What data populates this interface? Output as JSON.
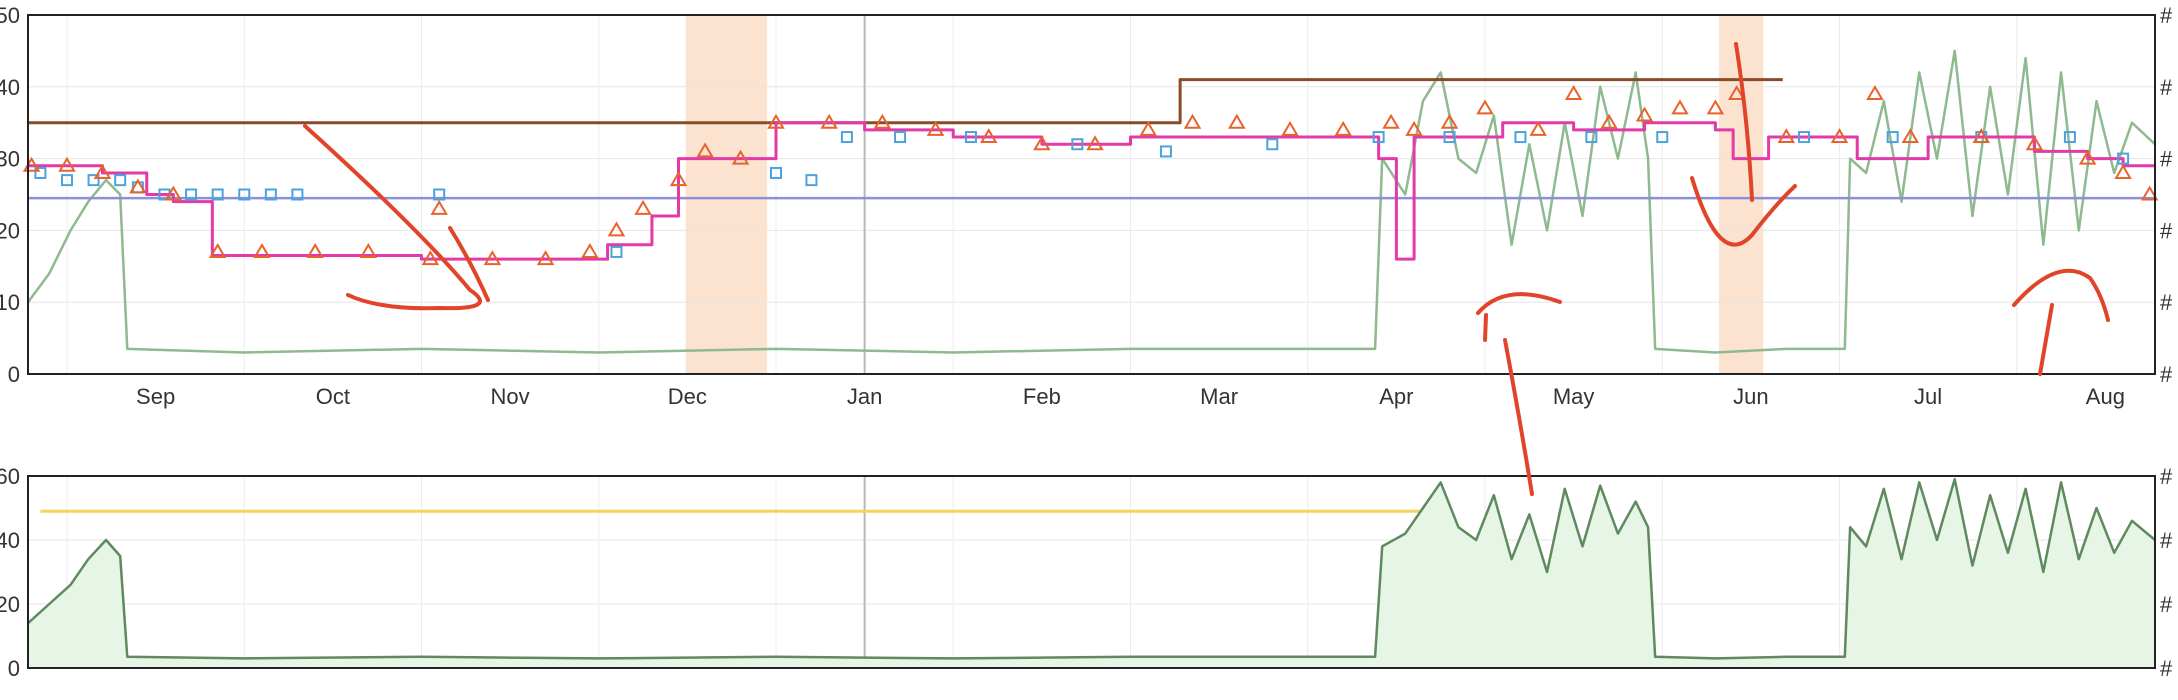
{
  "chart_data": [
    {
      "type": "line",
      "panel": "top",
      "grid": true,
      "legend": "none",
      "ylim": [
        0,
        50
      ],
      "y_ticks": [
        "0",
        "10",
        "20",
        "30",
        "40",
        "50"
      ],
      "right_ticks": [
        "#",
        "#",
        "#",
        "#",
        "#",
        "#"
      ],
      "x_ticks": [
        {
          "label": "Sep",
          "t": 1.0
        },
        {
          "label": "Oct",
          "t": 2.0
        },
        {
          "label": "Nov",
          "t": 3.0
        },
        {
          "label": "Dec",
          "t": 4.0
        },
        {
          "label": "Jan",
          "t": 5.0
        },
        {
          "label": "Feb",
          "t": 6.0
        },
        {
          "label": "Mar",
          "t": 7.0
        },
        {
          "label": "Apr",
          "t": 8.0
        },
        {
          "label": "May",
          "t": 9.0
        },
        {
          "label": "Jun",
          "t": 10.0
        },
        {
          "label": "Jul",
          "t": 11.0
        },
        {
          "label": "Aug",
          "t": 12.0
        }
      ],
      "xlim": [
        0.28,
        12.28
      ],
      "shaded_ranges": [
        [
          3.99,
          4.45
        ],
        [
          9.82,
          10.07
        ]
      ],
      "shade_color": "#fbe3d0",
      "vertical_marker_t": 5.0,
      "series": [
        {
          "color": "#8fb98f",
          "style": "line",
          "points": [
            [
              0.28,
              10
            ],
            [
              0.4,
              14
            ],
            [
              0.52,
              20
            ],
            [
              0.62,
              24
            ],
            [
              0.72,
              27
            ],
            [
              0.8,
              25
            ],
            [
              0.84,
              3.5
            ],
            [
              1.5,
              3
            ],
            [
              2.5,
              3.5
            ],
            [
              3.5,
              3
            ],
            [
              4.5,
              3.5
            ],
            [
              5.5,
              3
            ],
            [
              6.5,
              3.5
            ],
            [
              7.5,
              3.5
            ],
            [
              7.88,
              3.5
            ],
            [
              7.92,
              30
            ],
            [
              8.05,
              25
            ],
            [
              8.15,
              38
            ],
            [
              8.25,
              42
            ],
            [
              8.35,
              30
            ],
            [
              8.45,
              28
            ],
            [
              8.55,
              36
            ],
            [
              8.65,
              18
            ],
            [
              8.75,
              32
            ],
            [
              8.85,
              20
            ],
            [
              8.95,
              35
            ],
            [
              9.05,
              22
            ],
            [
              9.15,
              40
            ],
            [
              9.25,
              30
            ],
            [
              9.35,
              42
            ],
            [
              9.42,
              30
            ],
            [
              9.46,
              3.5
            ],
            [
              9.8,
              3
            ],
            [
              10.2,
              3.5
            ],
            [
              10.53,
              3.5
            ],
            [
              10.56,
              30
            ],
            [
              10.65,
              28
            ],
            [
              10.75,
              38
            ],
            [
              10.85,
              24
            ],
            [
              10.95,
              42
            ],
            [
              11.05,
              30
            ],
            [
              11.15,
              45
            ],
            [
              11.25,
              22
            ],
            [
              11.35,
              40
            ],
            [
              11.45,
              25
            ],
            [
              11.55,
              44
            ],
            [
              11.65,
              18
            ],
            [
              11.75,
              42
            ],
            [
              11.85,
              20
            ],
            [
              11.95,
              38
            ],
            [
              12.05,
              28
            ],
            [
              12.15,
              35
            ],
            [
              12.28,
              32
            ]
          ]
        },
        {
          "color": "#8a4b2a",
          "style": "step",
          "points": [
            [
              0.28,
              35
            ],
            [
              6.77,
              35
            ],
            [
              6.78,
              41
            ],
            [
              10.18,
              41
            ]
          ]
        },
        {
          "color": "#8c8fdc",
          "style": "line",
          "points": [
            [
              0.28,
              24.5
            ],
            [
              12.28,
              24.5
            ]
          ]
        },
        {
          "color": "#e23aa8",
          "style": "step",
          "points": [
            [
              0.28,
              29
            ],
            [
              0.7,
              28
            ],
            [
              0.95,
              25
            ],
            [
              1.1,
              24
            ],
            [
              1.32,
              16.5
            ],
            [
              2.5,
              16
            ],
            [
              3.4,
              16
            ],
            [
              3.55,
              18
            ],
            [
              3.8,
              22
            ],
            [
              3.95,
              30
            ],
            [
              4.3,
              30
            ],
            [
              4.5,
              35
            ],
            [
              5.0,
              34
            ],
            [
              5.5,
              33
            ],
            [
              6.0,
              32
            ],
            [
              6.5,
              33
            ],
            [
              6.85,
              33
            ],
            [
              7.2,
              33
            ],
            [
              7.6,
              33
            ],
            [
              7.9,
              30
            ],
            [
              8.0,
              16
            ],
            [
              8.1,
              33
            ],
            [
              8.6,
              35
            ],
            [
              9.0,
              34
            ],
            [
              9.4,
              35
            ],
            [
              9.8,
              34
            ],
            [
              9.9,
              30
            ],
            [
              10.1,
              33
            ],
            [
              10.5,
              33
            ],
            [
              10.6,
              30
            ],
            [
              11.0,
              33
            ],
            [
              11.6,
              31
            ],
            [
              11.9,
              30
            ],
            [
              12.1,
              29
            ],
            [
              12.28,
              29
            ]
          ]
        }
      ],
      "marker_series": [
        {
          "marker": "square",
          "color": "#4aa3df",
          "points": [
            [
              0.35,
              28
            ],
            [
              0.5,
              27
            ],
            [
              0.65,
              27
            ],
            [
              0.8,
              27
            ],
            [
              0.9,
              26
            ],
            [
              1.05,
              25
            ],
            [
              1.2,
              25
            ],
            [
              1.35,
              25
            ],
            [
              1.5,
              25
            ],
            [
              1.65,
              25
            ],
            [
              1.8,
              25
            ],
            [
              2.6,
              25
            ],
            [
              3.6,
              17
            ],
            [
              4.5,
              28
            ],
            [
              4.7,
              27
            ],
            [
              4.9,
              33
            ],
            [
              5.2,
              33
            ],
            [
              5.6,
              33
            ],
            [
              6.2,
              32
            ],
            [
              6.7,
              31
            ],
            [
              7.3,
              32
            ],
            [
              7.9,
              33
            ],
            [
              8.3,
              33
            ],
            [
              8.7,
              33
            ],
            [
              9.1,
              33
            ],
            [
              9.5,
              33
            ],
            [
              10.3,
              33
            ],
            [
              10.8,
              33
            ],
            [
              11.3,
              33
            ],
            [
              11.8,
              33
            ],
            [
              12.1,
              30
            ]
          ]
        },
        {
          "marker": "triangle",
          "color": "#e8632b",
          "points": [
            [
              0.3,
              29
            ],
            [
              0.5,
              29
            ],
            [
              0.7,
              28
            ],
            [
              0.9,
              26
            ],
            [
              1.1,
              25
            ],
            [
              1.35,
              17
            ],
            [
              1.6,
              17
            ],
            [
              1.9,
              17
            ],
            [
              2.2,
              17
            ],
            [
              2.55,
              16
            ],
            [
              2.6,
              23
            ],
            [
              2.9,
              16
            ],
            [
              3.2,
              16
            ],
            [
              3.45,
              17
            ],
            [
              3.6,
              20
            ],
            [
              3.75,
              23
            ],
            [
              3.95,
              27
            ],
            [
              4.1,
              31
            ],
            [
              4.3,
              30
            ],
            [
              4.5,
              35
            ],
            [
              4.8,
              35
            ],
            [
              5.1,
              35
            ],
            [
              5.4,
              34
            ],
            [
              5.7,
              33
            ],
            [
              6.0,
              32
            ],
            [
              6.3,
              32
            ],
            [
              6.6,
              34
            ],
            [
              6.85,
              35
            ],
            [
              7.1,
              35
            ],
            [
              7.4,
              34
            ],
            [
              7.7,
              34
            ],
            [
              7.97,
              35
            ],
            [
              8.1,
              34
            ],
            [
              8.3,
              35
            ],
            [
              8.5,
              37
            ],
            [
              8.8,
              34
            ],
            [
              9.0,
              39
            ],
            [
              9.2,
              35
            ],
            [
              9.4,
              36
            ],
            [
              9.6,
              37
            ],
            [
              9.8,
              37
            ],
            [
              9.92,
              39
            ],
            [
              10.2,
              33
            ],
            [
              10.5,
              33
            ],
            [
              10.7,
              39
            ],
            [
              10.9,
              33
            ],
            [
              11.3,
              33
            ],
            [
              11.6,
              32
            ],
            [
              11.9,
              30
            ],
            [
              12.1,
              28
            ],
            [
              12.25,
              25
            ]
          ]
        }
      ],
      "annotations_color": "#e0452a"
    },
    {
      "type": "area",
      "panel": "bottom",
      "grid": true,
      "legend": "none",
      "ylim": [
        0,
        60
      ],
      "y_ticks": [
        "0",
        "20",
        "40",
        "60"
      ],
      "right_ticks": [
        "#",
        "#",
        "#",
        "#"
      ],
      "xlim": [
        0.28,
        12.28
      ],
      "vertical_marker_t": 5.0,
      "threshold_line": {
        "value": 49,
        "from_t": 0.35,
        "to_t": 8.2,
        "color": "#f2d45c"
      },
      "series": [
        {
          "color": "#5f8a5f",
          "fill": "#e6f5e6",
          "points": [
            [
              0.28,
              14
            ],
            [
              0.4,
              20
            ],
            [
              0.52,
              26
            ],
            [
              0.62,
              34
            ],
            [
              0.72,
              40
            ],
            [
              0.8,
              35
            ],
            [
              0.84,
              3.5
            ],
            [
              1.5,
              3
            ],
            [
              2.5,
              3.5
            ],
            [
              3.5,
              3
            ],
            [
              4.5,
              3.5
            ],
            [
              5.5,
              3
            ],
            [
              6.5,
              3.5
            ],
            [
              7.5,
              3.5
            ],
            [
              7.88,
              3.5
            ],
            [
              7.92,
              38
            ],
            [
              8.05,
              42
            ],
            [
              8.15,
              50
            ],
            [
              8.25,
              58
            ],
            [
              8.35,
              44
            ],
            [
              8.45,
              40
            ],
            [
              8.55,
              54
            ],
            [
              8.65,
              34
            ],
            [
              8.75,
              48
            ],
            [
              8.85,
              30
            ],
            [
              8.95,
              56
            ],
            [
              9.05,
              38
            ],
            [
              9.15,
              57
            ],
            [
              9.25,
              42
            ],
            [
              9.35,
              52
            ],
            [
              9.42,
              44
            ],
            [
              9.46,
              3.5
            ],
            [
              9.8,
              3
            ],
            [
              10.2,
              3.5
            ],
            [
              10.53,
              3.5
            ],
            [
              10.56,
              44
            ],
            [
              10.65,
              38
            ],
            [
              10.75,
              56
            ],
            [
              10.85,
              34
            ],
            [
              10.95,
              58
            ],
            [
              11.05,
              40
            ],
            [
              11.15,
              59
            ],
            [
              11.25,
              32
            ],
            [
              11.35,
              54
            ],
            [
              11.45,
              36
            ],
            [
              11.55,
              56
            ],
            [
              11.65,
              30
            ],
            [
              11.75,
              58
            ],
            [
              11.85,
              34
            ],
            [
              11.95,
              50
            ],
            [
              12.05,
              36
            ],
            [
              12.15,
              46
            ],
            [
              12.28,
              40
            ]
          ]
        }
      ]
    }
  ]
}
